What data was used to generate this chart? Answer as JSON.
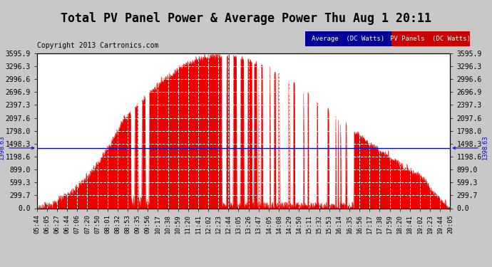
{
  "title": "Total PV Panel Power & Average Power Thu Aug 1 20:11",
  "copyright": "Copyright 2013 Cartronics.com",
  "legend_avg": "Average  (DC Watts)",
  "legend_pv": "PV Panels  (DC Watts)",
  "legend_avg_bg": "#000099",
  "legend_pv_bg": "#cc0000",
  "avg_line_value": 1398.63,
  "avg_annotation": "1398.63",
  "y_max": 3595.9,
  "y_min": 0.0,
  "y_ticks": [
    0.0,
    299.7,
    599.3,
    899.0,
    1198.6,
    1498.3,
    1798.0,
    2097.6,
    2397.3,
    2696.9,
    2996.6,
    3296.3,
    3595.9
  ],
  "plot_bg": "#ffffff",
  "fig_bg": "#c8c8c8",
  "grid_color": "#dddddd",
  "fill_color": "#ee0000",
  "avg_line_color": "#0000cc",
  "title_fontsize": 12,
  "axis_fontsize": 7,
  "copyright_fontsize": 7,
  "x_labels": [
    "05:44",
    "06:05",
    "06:27",
    "06:44",
    "07:06",
    "07:20",
    "07:50",
    "08:01",
    "08:32",
    "08:53",
    "09:35",
    "09:56",
    "10:17",
    "10:38",
    "10:59",
    "11:20",
    "11:41",
    "12:02",
    "12:23",
    "12:44",
    "13:05",
    "13:26",
    "13:47",
    "14:05",
    "14:08",
    "14:29",
    "14:50",
    "15:11",
    "15:32",
    "15:53",
    "16:14",
    "16:35",
    "16:56",
    "17:17",
    "17:38",
    "17:59",
    "18:20",
    "18:41",
    "19:02",
    "19:23",
    "19:44",
    "20:05"
  ]
}
